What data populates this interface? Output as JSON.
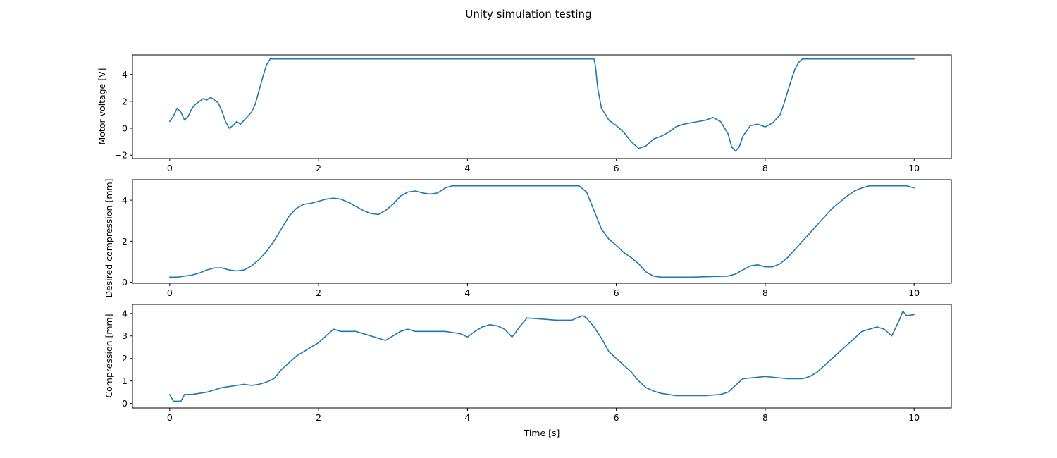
{
  "figure": {
    "title": "Unity simulation testing"
  },
  "style": {
    "line_color": "#1f77b4"
  },
  "chart_data": [
    {
      "type": "line",
      "title": "",
      "xlabel": "",
      "ylabel": "Motor voltage [V]",
      "xlim": [
        -0.5,
        10.5
      ],
      "ylim": [
        -2.25,
        5.45
      ],
      "xticks": [
        0,
        2,
        4,
        6,
        8,
        10
      ],
      "yticks": [
        -2,
        0,
        2,
        4
      ],
      "grid": false,
      "series": [
        {
          "color": "#1f77b4",
          "x": [
            0,
            0.05,
            0.1,
            0.15,
            0.2,
            0.25,
            0.3,
            0.35,
            0.4,
            0.45,
            0.5,
            0.55,
            0.6,
            0.65,
            0.7,
            0.75,
            0.8,
            0.85,
            0.9,
            0.95,
            1.0,
            1.05,
            1.1,
            1.15,
            1.2,
            1.25,
            1.3,
            1.35,
            5.7,
            5.72,
            5.75,
            5.8,
            5.9,
            6.0,
            6.1,
            6.2,
            6.3,
            6.4,
            6.5,
            6.6,
            6.7,
            6.8,
            6.9,
            7.0,
            7.1,
            7.2,
            7.3,
            7.4,
            7.5,
            7.55,
            7.6,
            7.65,
            7.7,
            7.8,
            7.9,
            8.0,
            8.1,
            8.2,
            8.25,
            8.3,
            8.35,
            8.4,
            8.45,
            8.5,
            8.55,
            10.0
          ],
          "y": [
            0.5,
            0.9,
            1.5,
            1.2,
            0.6,
            0.9,
            1.5,
            1.8,
            2.0,
            2.2,
            2.1,
            2.3,
            2.1,
            1.9,
            1.3,
            0.5,
            0.0,
            0.2,
            0.5,
            0.3,
            0.6,
            0.9,
            1.2,
            1.8,
            2.8,
            3.8,
            4.7,
            5.15,
            5.15,
            4.6,
            3.0,
            1.5,
            0.6,
            0.2,
            -0.3,
            -1.0,
            -1.5,
            -1.3,
            -0.8,
            -0.6,
            -0.3,
            0.1,
            0.3,
            0.4,
            0.5,
            0.6,
            0.8,
            0.5,
            -0.4,
            -1.4,
            -1.7,
            -1.4,
            -0.6,
            0.2,
            0.3,
            0.1,
            0.4,
            1.0,
            1.8,
            2.7,
            3.6,
            4.4,
            4.9,
            5.15,
            5.15,
            5.15
          ]
        }
      ]
    },
    {
      "type": "line",
      "title": "",
      "xlabel": "",
      "ylabel": "Desired compression [mm]",
      "xlim": [
        -0.5,
        10.5
      ],
      "ylim": [
        -0.05,
        5.0
      ],
      "xticks": [
        0,
        2,
        4,
        6,
        8,
        10
      ],
      "yticks": [
        0,
        2,
        4
      ],
      "grid": false,
      "series": [
        {
          "color": "#1f77b4",
          "x": [
            0,
            0.1,
            0.2,
            0.3,
            0.4,
            0.5,
            0.6,
            0.7,
            0.8,
            0.9,
            1.0,
            1.1,
            1.2,
            1.3,
            1.4,
            1.5,
            1.6,
            1.7,
            1.8,
            1.9,
            2.0,
            2.1,
            2.2,
            2.3,
            2.4,
            2.5,
            2.6,
            2.7,
            2.8,
            2.9,
            3.0,
            3.1,
            3.2,
            3.3,
            3.4,
            3.5,
            3.6,
            3.7,
            3.8,
            4.0,
            5.0,
            5.5,
            5.6,
            5.7,
            5.8,
            5.9,
            6.0,
            6.1,
            6.2,
            6.3,
            6.4,
            6.5,
            6.6,
            7.0,
            7.5,
            7.6,
            7.7,
            7.8,
            7.9,
            8.0,
            8.1,
            8.2,
            8.3,
            8.4,
            8.5,
            8.6,
            8.7,
            8.8,
            8.9,
            9.0,
            9.1,
            9.2,
            9.3,
            9.4,
            9.5,
            9.9,
            10.0
          ],
          "y": [
            0.25,
            0.25,
            0.3,
            0.35,
            0.45,
            0.6,
            0.7,
            0.7,
            0.6,
            0.55,
            0.6,
            0.8,
            1.1,
            1.5,
            2.0,
            2.6,
            3.2,
            3.6,
            3.8,
            3.85,
            3.95,
            4.05,
            4.1,
            4.05,
            3.9,
            3.7,
            3.5,
            3.35,
            3.3,
            3.5,
            3.8,
            4.2,
            4.4,
            4.45,
            4.35,
            4.3,
            4.35,
            4.6,
            4.7,
            4.7,
            4.7,
            4.7,
            4.4,
            3.5,
            2.6,
            2.1,
            1.8,
            1.45,
            1.2,
            0.9,
            0.5,
            0.3,
            0.25,
            0.25,
            0.3,
            0.4,
            0.6,
            0.8,
            0.85,
            0.75,
            0.75,
            0.9,
            1.2,
            1.6,
            2.0,
            2.4,
            2.8,
            3.2,
            3.6,
            3.9,
            4.2,
            4.45,
            4.6,
            4.7,
            4.7,
            4.7,
            4.6
          ]
        }
      ]
    },
    {
      "type": "line",
      "title": "",
      "xlabel": "Time [s]",
      "ylabel": "Compression [mm]",
      "xlim": [
        -0.5,
        10.5
      ],
      "ylim": [
        -0.2,
        4.4
      ],
      "xticks": [
        0,
        2,
        4,
        6,
        8,
        10
      ],
      "yticks": [
        0,
        1,
        2,
        3,
        4
      ],
      "grid": false,
      "series": [
        {
          "color": "#1f77b4",
          "x": [
            0,
            0.05,
            0.15,
            0.2,
            0.3,
            0.4,
            0.5,
            0.6,
            0.7,
            0.8,
            0.9,
            1.0,
            1.1,
            1.2,
            1.3,
            1.4,
            1.5,
            1.6,
            1.7,
            1.8,
            1.9,
            2.0,
            2.1,
            2.2,
            2.3,
            2.5,
            2.6,
            2.7,
            2.8,
            2.9,
            3.0,
            3.1,
            3.2,
            3.3,
            3.5,
            3.7,
            3.9,
            4.0,
            4.1,
            4.2,
            4.3,
            4.4,
            4.5,
            4.6,
            4.7,
            4.8,
            5.0,
            5.2,
            5.4,
            5.55,
            5.6,
            5.7,
            5.8,
            5.9,
            6.0,
            6.1,
            6.2,
            6.3,
            6.4,
            6.5,
            6.6,
            6.7,
            6.8,
            7.0,
            7.2,
            7.4,
            7.5,
            7.6,
            7.7,
            8.0,
            8.3,
            8.5,
            8.6,
            8.7,
            8.8,
            8.9,
            9.0,
            9.1,
            9.2,
            9.3,
            9.4,
            9.5,
            9.6,
            9.7,
            9.8,
            9.85,
            9.9,
            10.0
          ],
          "y": [
            0.4,
            0.1,
            0.1,
            0.4,
            0.4,
            0.45,
            0.5,
            0.6,
            0.7,
            0.75,
            0.8,
            0.85,
            0.8,
            0.85,
            0.95,
            1.1,
            1.5,
            1.8,
            2.1,
            2.3,
            2.5,
            2.7,
            3.0,
            3.3,
            3.2,
            3.2,
            3.1,
            3.0,
            2.9,
            2.8,
            3.0,
            3.2,
            3.3,
            3.2,
            3.2,
            3.2,
            3.1,
            2.95,
            3.2,
            3.4,
            3.5,
            3.45,
            3.3,
            2.95,
            3.4,
            3.8,
            3.75,
            3.7,
            3.7,
            3.9,
            3.8,
            3.4,
            2.9,
            2.3,
            2.0,
            1.7,
            1.4,
            1.0,
            0.7,
            0.55,
            0.45,
            0.4,
            0.35,
            0.35,
            0.35,
            0.4,
            0.5,
            0.8,
            1.1,
            1.2,
            1.1,
            1.1,
            1.2,
            1.4,
            1.7,
            2.0,
            2.3,
            2.6,
            2.9,
            3.2,
            3.3,
            3.4,
            3.3,
            3.0,
            3.7,
            4.1,
            3.9,
            3.95
          ]
        }
      ]
    }
  ]
}
